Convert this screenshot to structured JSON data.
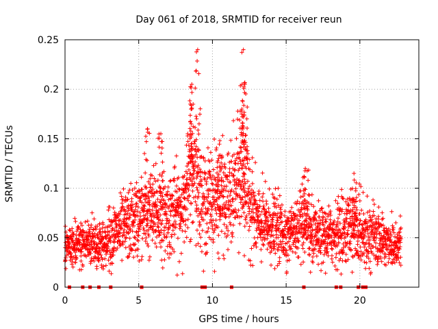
{
  "chart_data": {
    "type": "scatter",
    "title": "Day 061 of 2018, SRMTID for receiver reun",
    "xlabel": "GPS time / hours",
    "ylabel": "SRMTID / TECUs",
    "xlim": [
      0,
      24
    ],
    "ylim": [
      0,
      0.25
    ],
    "xticks": [
      0,
      5,
      10,
      15,
      20
    ],
    "xtick_labels": [
      "0",
      "5",
      "10",
      "15",
      "20"
    ],
    "yticks": [
      0,
      0.05,
      0.1,
      0.15,
      0.2,
      0.25
    ],
    "ytick_labels": [
      "0",
      "0.05",
      "0.1",
      "0.15",
      "0.2",
      "0.25"
    ],
    "grid": true,
    "marker": "+",
    "color": "#ff0000",
    "series": [
      {
        "name": "SRMTID",
        "profile": [
          {
            "x": 0.0,
            "y": 0.04
          },
          {
            "x": 1.0,
            "y": 0.042
          },
          {
            "x": 2.0,
            "y": 0.048
          },
          {
            "x": 2.5,
            "y": 0.04
          },
          {
            "x": 3.0,
            "y": 0.05
          },
          {
            "x": 4.0,
            "y": 0.06
          },
          {
            "x": 5.0,
            "y": 0.07
          },
          {
            "x": 6.0,
            "y": 0.075
          },
          {
            "x": 7.0,
            "y": 0.072
          },
          {
            "x": 8.0,
            "y": 0.08
          },
          {
            "x": 8.5,
            "y": 0.11
          },
          {
            "x": 9.0,
            "y": 0.1
          },
          {
            "x": 9.5,
            "y": 0.085
          },
          {
            "x": 10.0,
            "y": 0.09
          },
          {
            "x": 11.0,
            "y": 0.085
          },
          {
            "x": 12.0,
            "y": 0.11
          },
          {
            "x": 12.5,
            "y": 0.09
          },
          {
            "x": 13.0,
            "y": 0.065
          },
          {
            "x": 14.0,
            "y": 0.06
          },
          {
            "x": 15.0,
            "y": 0.055
          },
          {
            "x": 16.0,
            "y": 0.06
          },
          {
            "x": 17.0,
            "y": 0.05
          },
          {
            "x": 18.0,
            "y": 0.052
          },
          {
            "x": 19.0,
            "y": 0.06
          },
          {
            "x": 20.0,
            "y": 0.058
          },
          {
            "x": 21.0,
            "y": 0.05
          },
          {
            "x": 22.0,
            "y": 0.045
          },
          {
            "x": 22.8,
            "y": 0.042
          }
        ],
        "peaks": [
          {
            "x": 8.6,
            "y": 0.205
          },
          {
            "x": 9.0,
            "y": 0.24
          },
          {
            "x": 8.5,
            "y": 0.185
          },
          {
            "x": 12.1,
            "y": 0.24
          },
          {
            "x": 12.2,
            "y": 0.205
          },
          {
            "x": 12.0,
            "y": 0.18
          },
          {
            "x": 5.6,
            "y": 0.16
          },
          {
            "x": 6.5,
            "y": 0.155
          },
          {
            "x": 16.3,
            "y": 0.12
          },
          {
            "x": 19.6,
            "y": 0.115
          },
          {
            "x": 10.5,
            "y": 0.148
          }
        ],
        "zero_points": [
          0.3,
          1.2,
          1.7,
          2.3,
          3.1,
          5.2,
          9.3,
          9.5,
          11.3,
          16.2,
          18.4,
          18.7,
          19.9,
          20.2,
          20.4
        ]
      }
    ]
  }
}
